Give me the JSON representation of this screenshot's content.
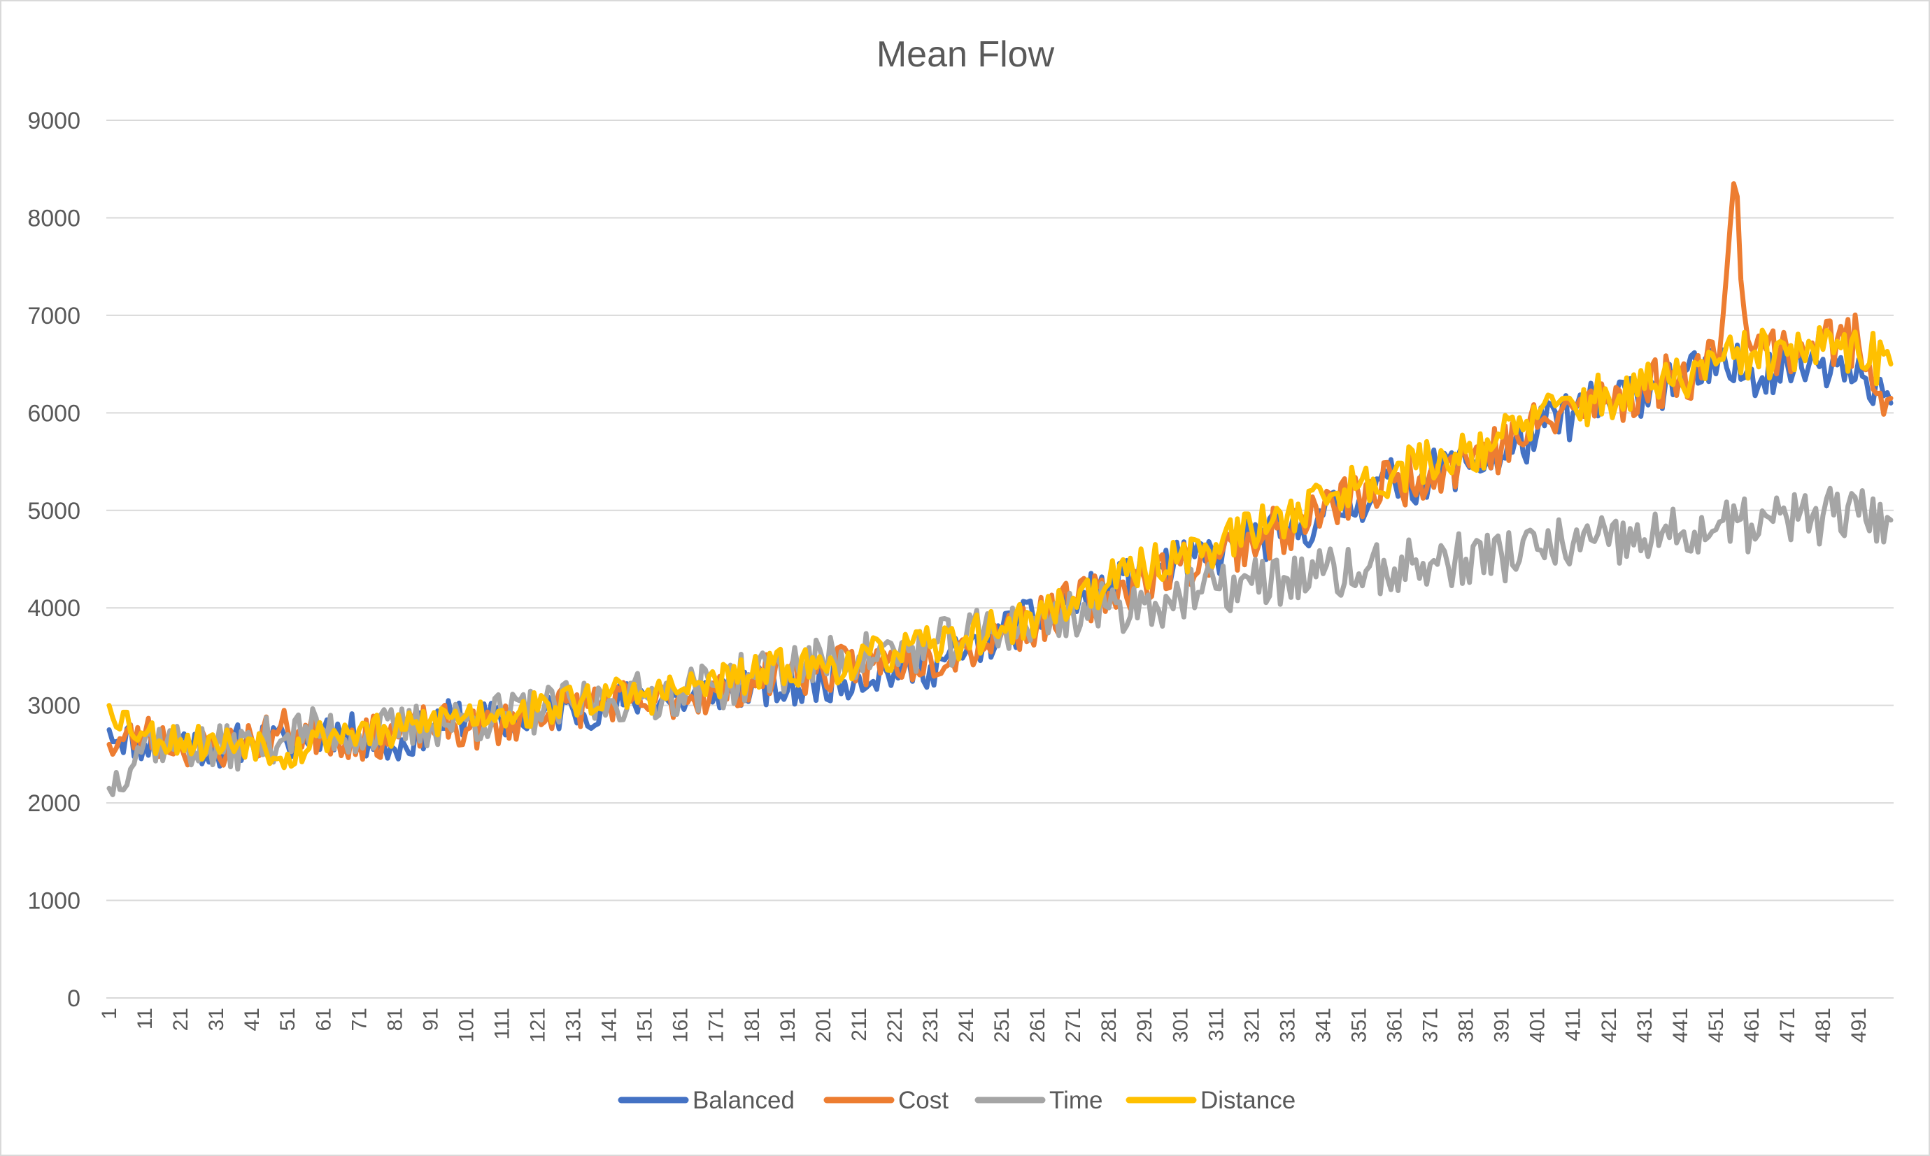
{
  "chart_data": {
    "type": "line",
    "title": "Mean Flow",
    "xlabel": "",
    "ylabel": "",
    "ylim": [
      0,
      9000
    ],
    "yticks": [
      "0",
      "1000",
      "2000",
      "3000",
      "4000",
      "5000",
      "6000",
      "7000",
      "8000",
      "9000"
    ],
    "x_range": [
      1,
      500
    ],
    "xtick_labels": [
      "1",
      "11",
      "21",
      "31",
      "41",
      "51",
      "61",
      "71",
      "81",
      "91",
      "101",
      "111",
      "121",
      "131",
      "141",
      "151",
      "161",
      "171",
      "181",
      "191",
      "201",
      "211",
      "221",
      "231",
      "241",
      "251",
      "261",
      "271",
      "281",
      "291",
      "301",
      "311",
      "321",
      "331",
      "341",
      "351",
      "361",
      "371",
      "381",
      "391",
      "401",
      "411",
      "421",
      "431",
      "441",
      "451",
      "461",
      "471",
      "481",
      "491"
    ],
    "grid": true,
    "legend_position": "bottom",
    "colors": {
      "Balanced": "#4472C4",
      "Cost": "#ED7D31",
      "Time": "#A5A5A5",
      "Distance": "#FFC000",
      "text": "#595959",
      "grid": "#D9D9D9"
    },
    "series": [
      {
        "name": "Balanced",
        "color": "#4472C4",
        "x": [
          1,
          11,
          21,
          31,
          41,
          51,
          61,
          71,
          81,
          91,
          101,
          111,
          121,
          131,
          141,
          151,
          161,
          171,
          181,
          191,
          201,
          211,
          221,
          231,
          241,
          251,
          261,
          271,
          281,
          291,
          301,
          311,
          321,
          331,
          341,
          351,
          361,
          371,
          381,
          391,
          401,
          411,
          421,
          431,
          441,
          451,
          461,
          471,
          481,
          491,
          500
        ],
        "values": [
          2750,
          2600,
          2650,
          2550,
          2650,
          2600,
          2750,
          2700,
          2550,
          2800,
          2900,
          2800,
          2900,
          2950,
          3000,
          3100,
          3050,
          3150,
          3200,
          3150,
          3250,
          3300,
          3350,
          3400,
          3550,
          3750,
          3900,
          4050,
          4200,
          4350,
          4450,
          4550,
          4700,
          4750,
          4950,
          5100,
          5300,
          5350,
          5500,
          5550,
          5800,
          6000,
          6100,
          6250,
          6350,
          6400,
          6450,
          6500,
          6550,
          6550,
          6100
        ]
      },
      {
        "name": "Cost",
        "color": "#ED7D31",
        "x": [
          1,
          11,
          21,
          31,
          41,
          51,
          61,
          71,
          81,
          91,
          101,
          111,
          121,
          131,
          141,
          151,
          161,
          171,
          181,
          191,
          201,
          211,
          221,
          231,
          241,
          251,
          261,
          271,
          281,
          291,
          301,
          311,
          321,
          331,
          341,
          351,
          361,
          371,
          381,
          391,
          401,
          411,
          421,
          431,
          441,
          451,
          456,
          461,
          471,
          481,
          491,
          500
        ],
        "values": [
          2600,
          2700,
          2600,
          2550,
          2650,
          2750,
          2700,
          2650,
          2700,
          2800,
          2750,
          2800,
          2950,
          3000,
          3050,
          3000,
          3100,
          3150,
          3250,
          3350,
          3350,
          3400,
          3450,
          3500,
          3600,
          3750,
          3850,
          4050,
          4150,
          4300,
          4450,
          4550,
          4700,
          4800,
          5000,
          5150,
          5300,
          5400,
          5550,
          5650,
          5850,
          6050,
          6150,
          6250,
          6400,
          6500,
          8350,
          6650,
          6650,
          6750,
          6700,
          6150
        ]
      },
      {
        "name": "Time",
        "color": "#A5A5A5",
        "x": [
          1,
          11,
          21,
          31,
          41,
          51,
          61,
          71,
          81,
          91,
          101,
          111,
          121,
          131,
          141,
          151,
          161,
          171,
          181,
          191,
          201,
          211,
          221,
          231,
          241,
          251,
          261,
          271,
          281,
          291,
          301,
          311,
          321,
          331,
          341,
          351,
          361,
          371,
          381,
          391,
          401,
          411,
          421,
          431,
          441,
          451,
          461,
          471,
          481,
          491,
          500
        ],
        "values": [
          2150,
          2650,
          2600,
          2550,
          2600,
          2700,
          2750,
          2700,
          2750,
          2800,
          2850,
          2900,
          2950,
          3000,
          3050,
          3100,
          3150,
          3200,
          3300,
          3400,
          3450,
          3500,
          3550,
          3600,
          3700,
          3800,
          3850,
          3950,
          4000,
          4050,
          4100,
          4200,
          4250,
          4300,
          4350,
          4350,
          4400,
          4450,
          4500,
          4550,
          4600,
          4650,
          4650,
          4700,
          4750,
          4800,
          4850,
          4900,
          4950,
          4950,
          4900
        ]
      },
      {
        "name": "Distance",
        "color": "#FFC000",
        "x": [
          1,
          11,
          21,
          31,
          41,
          51,
          61,
          71,
          81,
          91,
          101,
          111,
          121,
          131,
          141,
          151,
          161,
          171,
          181,
          191,
          201,
          211,
          221,
          231,
          241,
          251,
          261,
          271,
          281,
          291,
          301,
          311,
          321,
          331,
          341,
          351,
          361,
          371,
          381,
          391,
          401,
          411,
          421,
          431,
          441,
          451,
          461,
          471,
          481,
          491,
          500
        ],
        "values": [
          3000,
          2700,
          2650,
          2600,
          2650,
          2500,
          2700,
          2750,
          2700,
          2850,
          2900,
          2950,
          2950,
          3050,
          3100,
          3100,
          3150,
          3250,
          3300,
          3400,
          3400,
          3450,
          3550,
          3600,
          3700,
          3800,
          3900,
          4100,
          4250,
          4400,
          4550,
          4650,
          4800,
          4950,
          5150,
          5250,
          5400,
          5500,
          5600,
          5750,
          5950,
          6100,
          6150,
          6250,
          6350,
          6500,
          6600,
          6600,
          6650,
          6600,
          6500
        ]
      }
    ]
  }
}
